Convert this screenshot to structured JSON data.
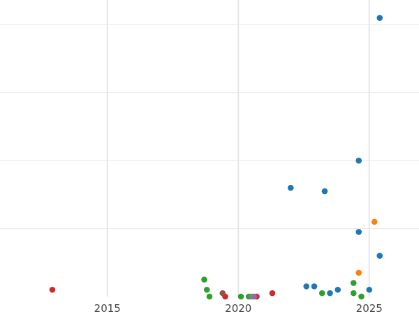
{
  "chart_data": {
    "type": "scatter",
    "title": "",
    "xlabel": "",
    "ylabel": "",
    "x_ticks": [
      2015,
      2020,
      2025
    ],
    "xlim": [
      2010.9,
      2026.9
    ],
    "ylim": [
      0,
      1.0
    ],
    "y_gridlines": [
      0.2,
      0.4,
      0.6,
      0.8,
      1.0
    ],
    "grid": true,
    "legend": "none",
    "series": [
      {
        "color": "#1f77b4",
        "points": [
          {
            "x": 2025.4,
            "y": 0.82
          },
          {
            "x": 2024.6,
            "y": 0.4
          },
          {
            "x": 2022.0,
            "y": 0.32
          },
          {
            "x": 2023.3,
            "y": 0.31
          },
          {
            "x": 2024.6,
            "y": 0.19
          },
          {
            "x": 2025.4,
            "y": 0.12
          },
          {
            "x": 2022.6,
            "y": 0.03
          },
          {
            "x": 2022.9,
            "y": 0.03
          },
          {
            "x": 2023.5,
            "y": 0.01
          },
          {
            "x": 2023.8,
            "y": 0.02
          },
          {
            "x": 2025.0,
            "y": 0.02
          }
        ]
      },
      {
        "color": "#ff7f0e",
        "points": [
          {
            "x": 2025.2,
            "y": 0.22
          },
          {
            "x": 2024.6,
            "y": 0.07
          },
          {
            "x": 2020.6,
            "y": 0.0
          }
        ]
      },
      {
        "color": "#2ca02c",
        "points": [
          {
            "x": 2018.7,
            "y": 0.05
          },
          {
            "x": 2018.8,
            "y": 0.02
          },
          {
            "x": 2018.9,
            "y": 0.0
          },
          {
            "x": 2020.1,
            "y": 0.0
          },
          {
            "x": 2020.4,
            "y": 0.0
          },
          {
            "x": 2023.2,
            "y": 0.01
          },
          {
            "x": 2024.4,
            "y": 0.04
          },
          {
            "x": 2024.4,
            "y": 0.01
          },
          {
            "x": 2024.7,
            "y": 0.0
          }
        ]
      },
      {
        "color": "#d62728",
        "points": [
          {
            "x": 2012.9,
            "y": 0.02
          },
          {
            "x": 2019.5,
            "y": 0.0
          },
          {
            "x": 2021.3,
            "y": 0.01
          },
          {
            "x": 2020.7,
            "y": 0.0
          }
        ]
      },
      {
        "color": "#8c564b",
        "points": [
          {
            "x": 2019.4,
            "y": 0.01
          }
        ]
      },
      {
        "color": "#9467bd",
        "points": [
          {
            "x": 2020.6,
            "y": 0.0
          }
        ]
      },
      {
        "color": "#7f7f7f",
        "points": [
          {
            "x": 2020.5,
            "y": 0.0
          }
        ]
      }
    ]
  }
}
